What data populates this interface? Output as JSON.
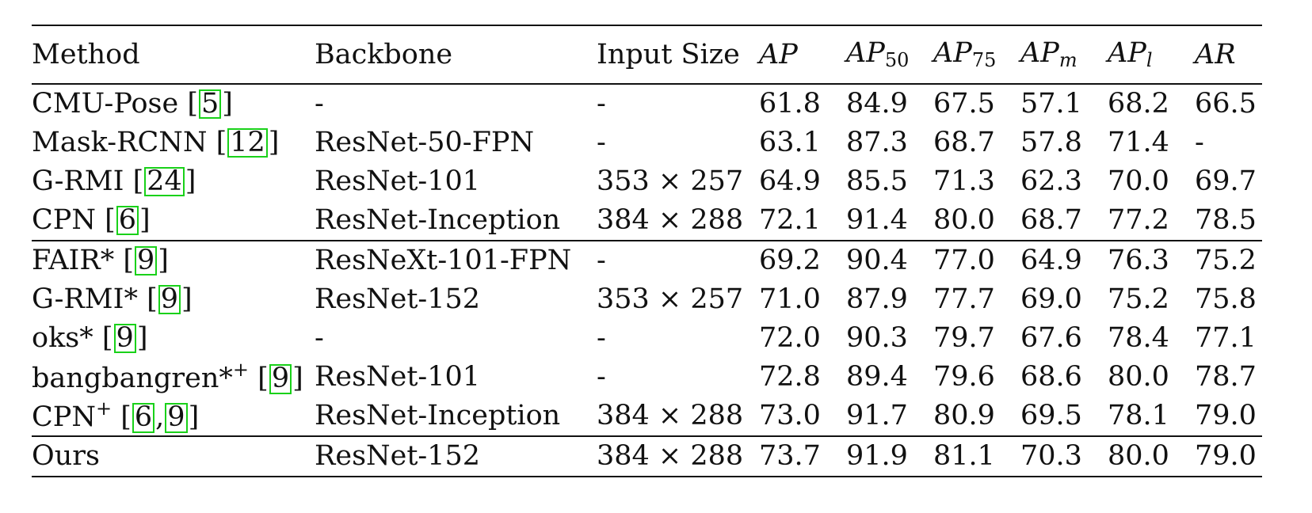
{
  "table": {
    "headers": {
      "method": "Method",
      "backbone": "Backbone",
      "input_size": "Input Size",
      "ap": {
        "base": "AP",
        "sub": ""
      },
      "ap50": {
        "base": "AP",
        "sub": "50"
      },
      "ap75": {
        "base": "AP",
        "sub": "75"
      },
      "apm": {
        "base": "AP",
        "sub": "m"
      },
      "apl": {
        "base": "AP",
        "sub": "l"
      },
      "ar": {
        "base": "AR",
        "sub": ""
      }
    },
    "rows": [
      {
        "method": "CMU-Pose",
        "sup": "",
        "cite": [
          "5"
        ],
        "backbone": "-",
        "input_size": "-",
        "values": [
          "61.8",
          "84.9",
          "67.5",
          "57.1",
          "68.2",
          "66.5"
        ],
        "bold": [
          false,
          false,
          false,
          false,
          false,
          false
        ]
      },
      {
        "method": "Mask-RCNN",
        "sup": "",
        "cite": [
          "12"
        ],
        "backbone": "ResNet-50-FPN",
        "input_size": "-",
        "values": [
          "63.1",
          "87.3",
          "68.7",
          "57.8",
          "71.4",
          "-"
        ],
        "bold": [
          false,
          false,
          false,
          false,
          false,
          false
        ]
      },
      {
        "method": "G-RMI",
        "sup": "",
        "cite": [
          "24"
        ],
        "backbone": "ResNet-101",
        "input_size": "353 × 257",
        "values": [
          "64.9",
          "85.5",
          "71.3",
          "62.3",
          "70.0",
          "69.7"
        ],
        "bold": [
          false,
          false,
          false,
          false,
          false,
          false
        ]
      },
      {
        "method": "CPN",
        "sup": "",
        "cite": [
          "6"
        ],
        "backbone": "ResNet-Inception",
        "input_size": "384 × 288",
        "values": [
          "72.1",
          "91.4",
          "80.0",
          "68.7",
          "77.2",
          "78.5"
        ],
        "bold": [
          false,
          false,
          false,
          false,
          false,
          false
        ]
      },
      {
        "method": "FAIR*",
        "sup": "",
        "cite": [
          "9"
        ],
        "backbone": "ResNeXt-101-FPN",
        "input_size": "-",
        "values": [
          "69.2",
          "90.4",
          "77.0",
          "64.9",
          "76.3",
          "75.2"
        ],
        "bold": [
          false,
          false,
          false,
          false,
          false,
          false
        ]
      },
      {
        "method": "G-RMI*",
        "sup": "",
        "cite": [
          "9"
        ],
        "backbone": "ResNet-152",
        "input_size": "353 × 257",
        "values": [
          "71.0",
          "87.9",
          "77.7",
          "69.0",
          "75.2",
          "75.8"
        ],
        "bold": [
          false,
          false,
          false,
          false,
          false,
          false
        ]
      },
      {
        "method": "oks*",
        "sup": "",
        "cite": [
          "9"
        ],
        "backbone": "-",
        "input_size": "-",
        "values": [
          "72.0",
          "90.3",
          "79.7",
          "67.6",
          "78.4",
          "77.1"
        ],
        "bold": [
          false,
          false,
          false,
          false,
          false,
          false
        ]
      },
      {
        "method": "bangbangren*",
        "sup": "+",
        "cite": [
          "9"
        ],
        "backbone": "ResNet-101",
        "input_size": "-",
        "values": [
          "72.8",
          "89.4",
          "79.6",
          "68.6",
          "80.0",
          "78.7"
        ],
        "bold": [
          false,
          false,
          false,
          false,
          true,
          false
        ]
      },
      {
        "method": "CPN",
        "sup": "+",
        "cite": [
          "6",
          "9"
        ],
        "backbone": "ResNet-Inception",
        "input_size": "384 × 288",
        "values": [
          "73.0",
          "91.7",
          "80.9",
          "69.5",
          "78.1",
          "79.0"
        ],
        "bold": [
          false,
          true,
          false,
          false,
          false,
          true
        ]
      },
      {
        "method": "Ours",
        "sup": "",
        "cite": [],
        "backbone": "ResNet-152",
        "input_size": "384 × 288",
        "values": [
          "73.7",
          "91.9",
          "81.1",
          "70.3",
          "80.0",
          "79.0"
        ],
        "bold": [
          true,
          true,
          true,
          true,
          true,
          true
        ]
      }
    ],
    "groups": [
      4,
      5,
      1
    ]
  }
}
